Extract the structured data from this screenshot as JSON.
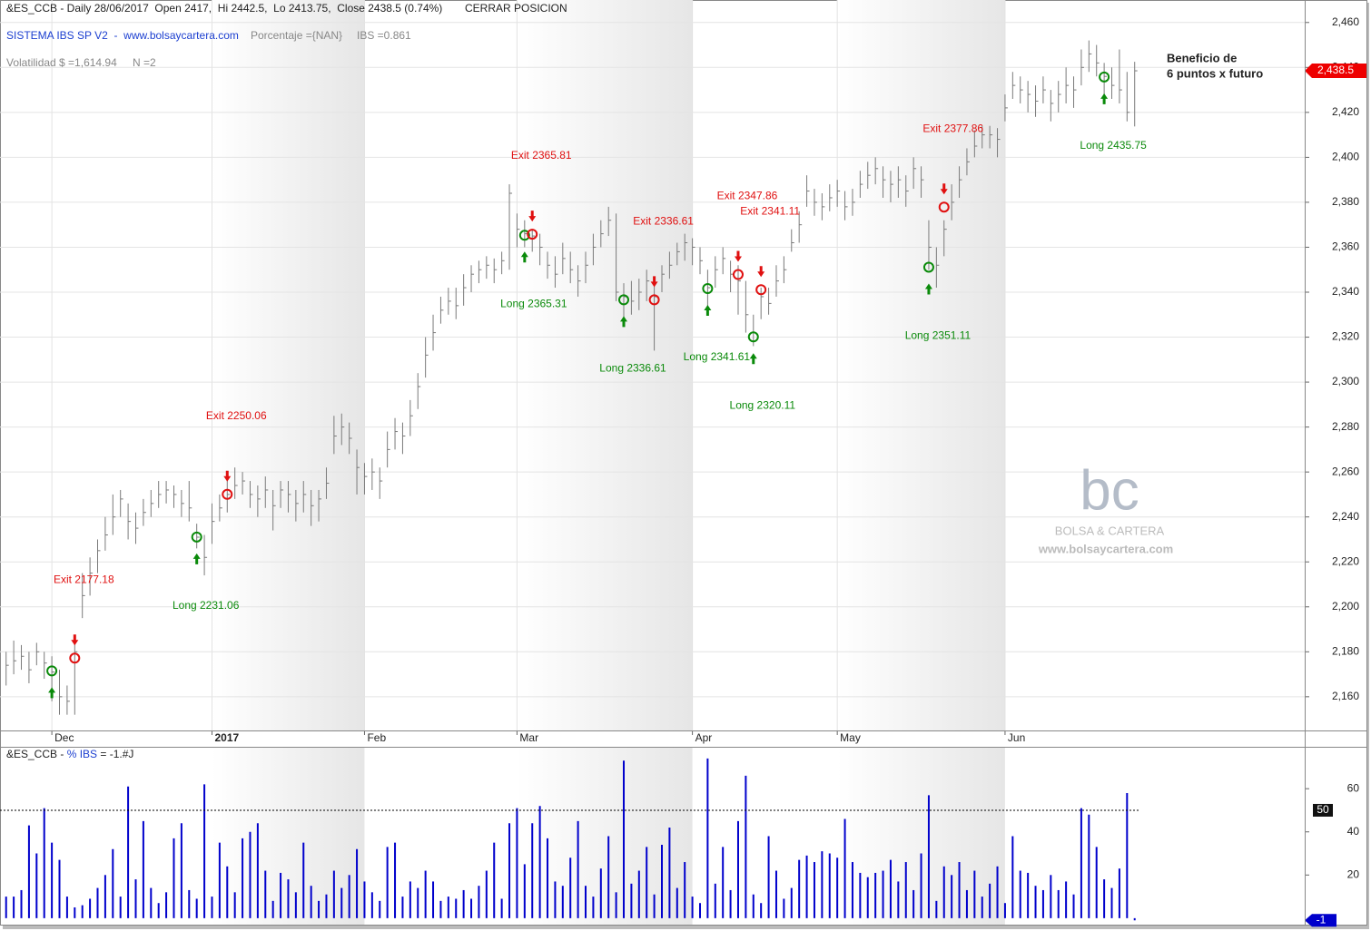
{
  "header": {
    "line1": "&ES_CCB - Daily 28/06/2017  Open 2417,  Hi 2442.5,  Lo 2413.75,  Close 2438.5 (0.74%)",
    "action": "CERRAR POSICION",
    "system": "SISTEMA IBS SP V2  -  www.bolsaycartera.com",
    "percentage": "Porcentaje ={NAN}",
    "ibs": "IBS =0.861",
    "volatility": "Volatilidad $ =1,614.94",
    "n": "N =2"
  },
  "watermark": {
    "logo": "bc",
    "name": "BOLSA & CARTERA",
    "url": "www.bolsaycartera.com"
  },
  "chart_data": [
    {
      "type": "ohlc",
      "color": "#7a7a7a",
      "grid": true,
      "xlim": [
        -0.8,
        170.3
      ],
      "ylim": [
        2145,
        2470
      ],
      "xticks": [
        {
          "value": 6,
          "label": "Dec"
        },
        {
          "value": 27,
          "label": "2017"
        },
        {
          "value": 47,
          "label": "Feb"
        },
        {
          "value": 67,
          "label": "Mar"
        },
        {
          "value": 90,
          "label": "Apr"
        },
        {
          "value": 109,
          "label": "May"
        },
        {
          "value": 131,
          "label": "Jun"
        }
      ],
      "yticks": [
        {
          "value": 2160,
          "label": "2,160"
        },
        {
          "value": 2180,
          "label": "2,180"
        },
        {
          "value": 2200,
          "label": "2,200"
        },
        {
          "value": 2220,
          "label": "2,220"
        },
        {
          "value": 2240,
          "label": "2,240"
        },
        {
          "value": 2260,
          "label": "2,260"
        },
        {
          "value": 2280,
          "label": "2,280"
        },
        {
          "value": 2300,
          "label": "2,300"
        },
        {
          "value": 2320,
          "label": "2,320"
        },
        {
          "value": 2340,
          "label": "2,340"
        },
        {
          "value": 2360,
          "label": "2,360"
        },
        {
          "value": 2380,
          "label": "2,380"
        },
        {
          "value": 2400,
          "label": "2,400"
        },
        {
          "value": 2420,
          "label": "2,420"
        },
        {
          "value": 2440,
          "label": "2,440"
        },
        {
          "value": 2460,
          "label": "2,460"
        }
      ],
      "high": [
        2180,
        2185,
        2183,
        2180,
        2184,
        2180,
        2178,
        2172,
        2165,
        2186,
        2215,
        2222,
        2230,
        2240,
        2250,
        2252,
        2246,
        2242,
        2248,
        2252,
        2256,
        2256,
        2254,
        2252,
        2256,
        2237,
        2232,
        2246,
        2250,
        2258,
        2262,
        2260,
        2256,
        2254,
        2258,
        2252,
        2256,
        2256,
        2252,
        2256,
        2252,
        2252,
        2262,
        2285,
        2286,
        2282,
        2270,
        2264,
        2266,
        2262,
        2278,
        2284,
        2282,
        2292,
        2304,
        2320,
        2330,
        2338,
        2342,
        2342,
        2348,
        2352,
        2354,
        2356,
        2355,
        2358,
        2388,
        2375,
        2372,
        2368,
        2366,
        2358,
        2356,
        2362,
        2358,
        2352,
        2358,
        2366,
        2372,
        2378,
        2375,
        2344,
        2345,
        2346,
        2350,
        2345,
        2352,
        2358,
        2362,
        2366,
        2364,
        2360,
        2350,
        2356,
        2360,
        2354,
        2352,
        2345,
        2330,
        2342,
        2342,
        2352,
        2356,
        2368,
        2376,
        2392,
        2386,
        2384,
        2388,
        2390,
        2385,
        2386,
        2394,
        2398,
        2400,
        2396,
        2394,
        2396,
        2392,
        2400,
        2396,
        2372,
        2360,
        2372,
        2388,
        2396,
        2404,
        2412,
        2414,
        2414,
        2413,
        2428,
        2438,
        2436,
        2434,
        2432,
        2436,
        2430,
        2434,
        2440,
        2436,
        2448,
        2452,
        2450,
        2442,
        2440,
        2448,
        2438,
        2442.5
      ],
      "low": [
        2165,
        2170,
        2172,
        2166,
        2174,
        2168,
        2158,
        2152,
        2152,
        2152,
        2195,
        2205,
        2215,
        2225,
        2232,
        2240,
        2230,
        2228,
        2236,
        2240,
        2244,
        2246,
        2244,
        2240,
        2238,
        2226,
        2214,
        2228,
        2238,
        2242,
        2248,
        2250,
        2244,
        2240,
        2244,
        2234,
        2244,
        2242,
        2238,
        2242,
        2236,
        2238,
        2248,
        2268,
        2272,
        2268,
        2250,
        2250,
        2252,
        2248,
        2262,
        2270,
        2268,
        2276,
        2288,
        2302,
        2314,
        2326,
        2330,
        2328,
        2334,
        2340,
        2344,
        2346,
        2344,
        2348,
        2350,
        2360,
        2360,
        2358,
        2352,
        2346,
        2342,
        2348,
        2344,
        2338,
        2344,
        2352,
        2360,
        2365,
        2336,
        2328,
        2330,
        2332,
        2336,
        2314,
        2340,
        2346,
        2352,
        2354,
        2352,
        2348,
        2334,
        2342,
        2348,
        2340,
        2330,
        2322,
        2316,
        2328,
        2330,
        2338,
        2344,
        2358,
        2362,
        2378,
        2374,
        2372,
        2376,
        2378,
        2372,
        2374,
        2382,
        2386,
        2388,
        2382,
        2380,
        2382,
        2378,
        2386,
        2382,
        2350,
        2342,
        2356,
        2372,
        2382,
        2392,
        2400,
        2404,
        2404,
        2400,
        2416,
        2426,
        2424,
        2420,
        2418,
        2424,
        2416,
        2420,
        2424,
        2422,
        2432,
        2438,
        2436,
        2428,
        2426,
        2424,
        2416,
        2413.75
      ],
      "close": [
        2174,
        2176,
        2178,
        2172,
        2180,
        2175,
        2171,
        2160,
        2158,
        2180,
        2205,
        2215,
        2225,
        2232,
        2240,
        2248,
        2238,
        2235,
        2242,
        2246,
        2250,
        2252,
        2250,
        2246,
        2244,
        2231,
        2222,
        2238,
        2244,
        2250,
        2254,
        2256,
        2250,
        2248,
        2252,
        2245,
        2252,
        2250,
        2246,
        2250,
        2245,
        2248,
        2255,
        2276,
        2280,
        2275,
        2262,
        2258,
        2260,
        2256,
        2270,
        2278,
        2276,
        2285,
        2298,
        2312,
        2322,
        2332,
        2336,
        2334,
        2342,
        2348,
        2350,
        2352,
        2350,
        2354,
        2384,
        2368,
        2366,
        2365,
        2360,
        2352,
        2348,
        2355,
        2350,
        2345,
        2352,
        2360,
        2366,
        2372,
        2340,
        2338,
        2336,
        2340,
        2345,
        2338,
        2348,
        2352,
        2358,
        2362,
        2360,
        2354,
        2342,
        2350,
        2355,
        2348,
        2345,
        2330,
        2322,
        2338,
        2335,
        2345,
        2350,
        2362,
        2370,
        2385,
        2380,
        2378,
        2382,
        2385,
        2378,
        2380,
        2388,
        2392,
        2395,
        2390,
        2388,
        2390,
        2385,
        2395,
        2390,
        2360,
        2352,
        2368,
        2380,
        2390,
        2398,
        2405,
        2410,
        2410,
        2408,
        2422,
        2432,
        2430,
        2428,
        2425,
        2430,
        2424,
        2428,
        2432,
        2430,
        2440,
        2446,
        2442,
        2436,
        2432,
        2430,
        2420,
        2438.5
      ],
      "last_label": "2,438.5",
      "last_color": "#ee0000",
      "entries": {
        "color": "#0a8a0a",
        "points": [
          {
            "x": 6,
            "value": 2171.5
          },
          {
            "x": 25,
            "value": 2231.06,
            "label": "Long 2231.06"
          },
          {
            "x": 68,
            "value": 2365.31,
            "label": "Long 2365.31"
          },
          {
            "x": 81,
            "value": 2336.61,
            "label": "Long 2336.61"
          },
          {
            "x": 92,
            "value": 2341.61,
            "label": "Long 2341.61"
          },
          {
            "x": 98,
            "value": 2320.11,
            "label": "Long 2320.11"
          },
          {
            "x": 121,
            "value": 2351.11,
            "label": "Long 2351.11"
          },
          {
            "x": 144,
            "value": 2435.75,
            "label": "Long 2435.75"
          }
        ]
      },
      "exits": {
        "color": "#e01010",
        "points": [
          {
            "x": 9,
            "value": 2177.18,
            "label": "Exit 2177.18"
          },
          {
            "x": 29,
            "value": 2250.06,
            "label": "Exit 2250.06"
          },
          {
            "x": 69,
            "value": 2365.81,
            "label": "Exit 2365.81"
          },
          {
            "x": 85,
            "value": 2336.61,
            "label": "Exit 2336.61"
          },
          {
            "x": 96,
            "value": 2347.86,
            "label": "Exit 2347.86"
          },
          {
            "x": 99,
            "value": 2341.11,
            "label": "Exit 2341.11"
          },
          {
            "x": 123,
            "value": 2377.86,
            "label": "Exit 2377.86"
          }
        ]
      },
      "annotation": [
        "Beneficio de",
        "6 puntos x futuro"
      ]
    },
    {
      "type": "bar",
      "color": "#0000cc",
      "grid": false,
      "title_parts": [
        "&ES_CCB - ",
        "% IBS",
        " = -1.#J"
      ],
      "xlim": [
        -0.8,
        170.3
      ],
      "ylim": [
        -3,
        79
      ],
      "yticks": [
        20,
        40,
        60
      ],
      "level": 50,
      "values": [
        10,
        10,
        13,
        43,
        30,
        51,
        35,
        27,
        10,
        5,
        6,
        9,
        14,
        20,
        32,
        10,
        61,
        18,
        45,
        14,
        7,
        12,
        37,
        44,
        13,
        9,
        62,
        10,
        35,
        24,
        12,
        37,
        40,
        44,
        22,
        8,
        21,
        18,
        12,
        35,
        15,
        8,
        11,
        22,
        14,
        20,
        32,
        17,
        12,
        8,
        33,
        35,
        10,
        17,
        14,
        22,
        17,
        8,
        10,
        9,
        13,
        9,
        15,
        22,
        35,
        9,
        44,
        51,
        25,
        44,
        52,
        37,
        17,
        15,
        28,
        45,
        15,
        10,
        23,
        38,
        12,
        73,
        16,
        22,
        33,
        11,
        34,
        42,
        14,
        26,
        10,
        7,
        74,
        16,
        33,
        13,
        45,
        66,
        11,
        7,
        38,
        22,
        9,
        14,
        27,
        29,
        26,
        31,
        30,
        28,
        46,
        26,
        21,
        19,
        21,
        22,
        27,
        17,
        26,
        13,
        30,
        57,
        8,
        24,
        20,
        26,
        13,
        22,
        10,
        16,
        24,
        7,
        38,
        22,
        21,
        15,
        13,
        20,
        13,
        17,
        11,
        51,
        48,
        33,
        18,
        14,
        23,
        58,
        -1
      ]
    }
  ]
}
